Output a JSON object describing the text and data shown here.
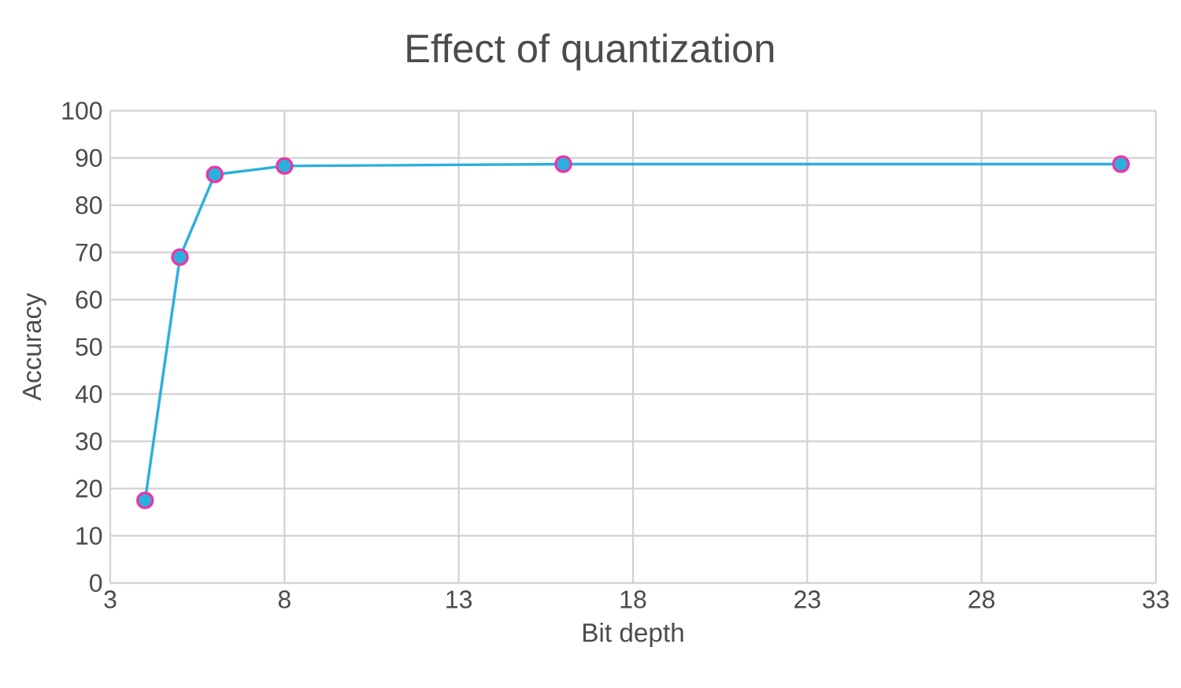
{
  "chart_data": {
    "type": "line",
    "title": "Effect of quantization",
    "xlabel": "Bit depth",
    "ylabel": "Accuracy",
    "x": [
      4,
      5,
      6,
      8,
      16,
      32
    ],
    "series": [
      {
        "color": "#2bb0de",
        "values": [
          17.5,
          69,
          86.5,
          88.3,
          88.7,
          88.7
        ]
      }
    ],
    "xlim": [
      3,
      33
    ],
    "xticks": [
      3,
      8,
      13,
      18,
      23,
      28,
      33
    ],
    "ylim": [
      0,
      100
    ],
    "yticks": [
      0,
      10,
      20,
      30,
      40,
      50,
      60,
      70,
      80,
      90,
      100
    ],
    "grid": true,
    "marker": "circle",
    "line_style": "solid"
  }
}
